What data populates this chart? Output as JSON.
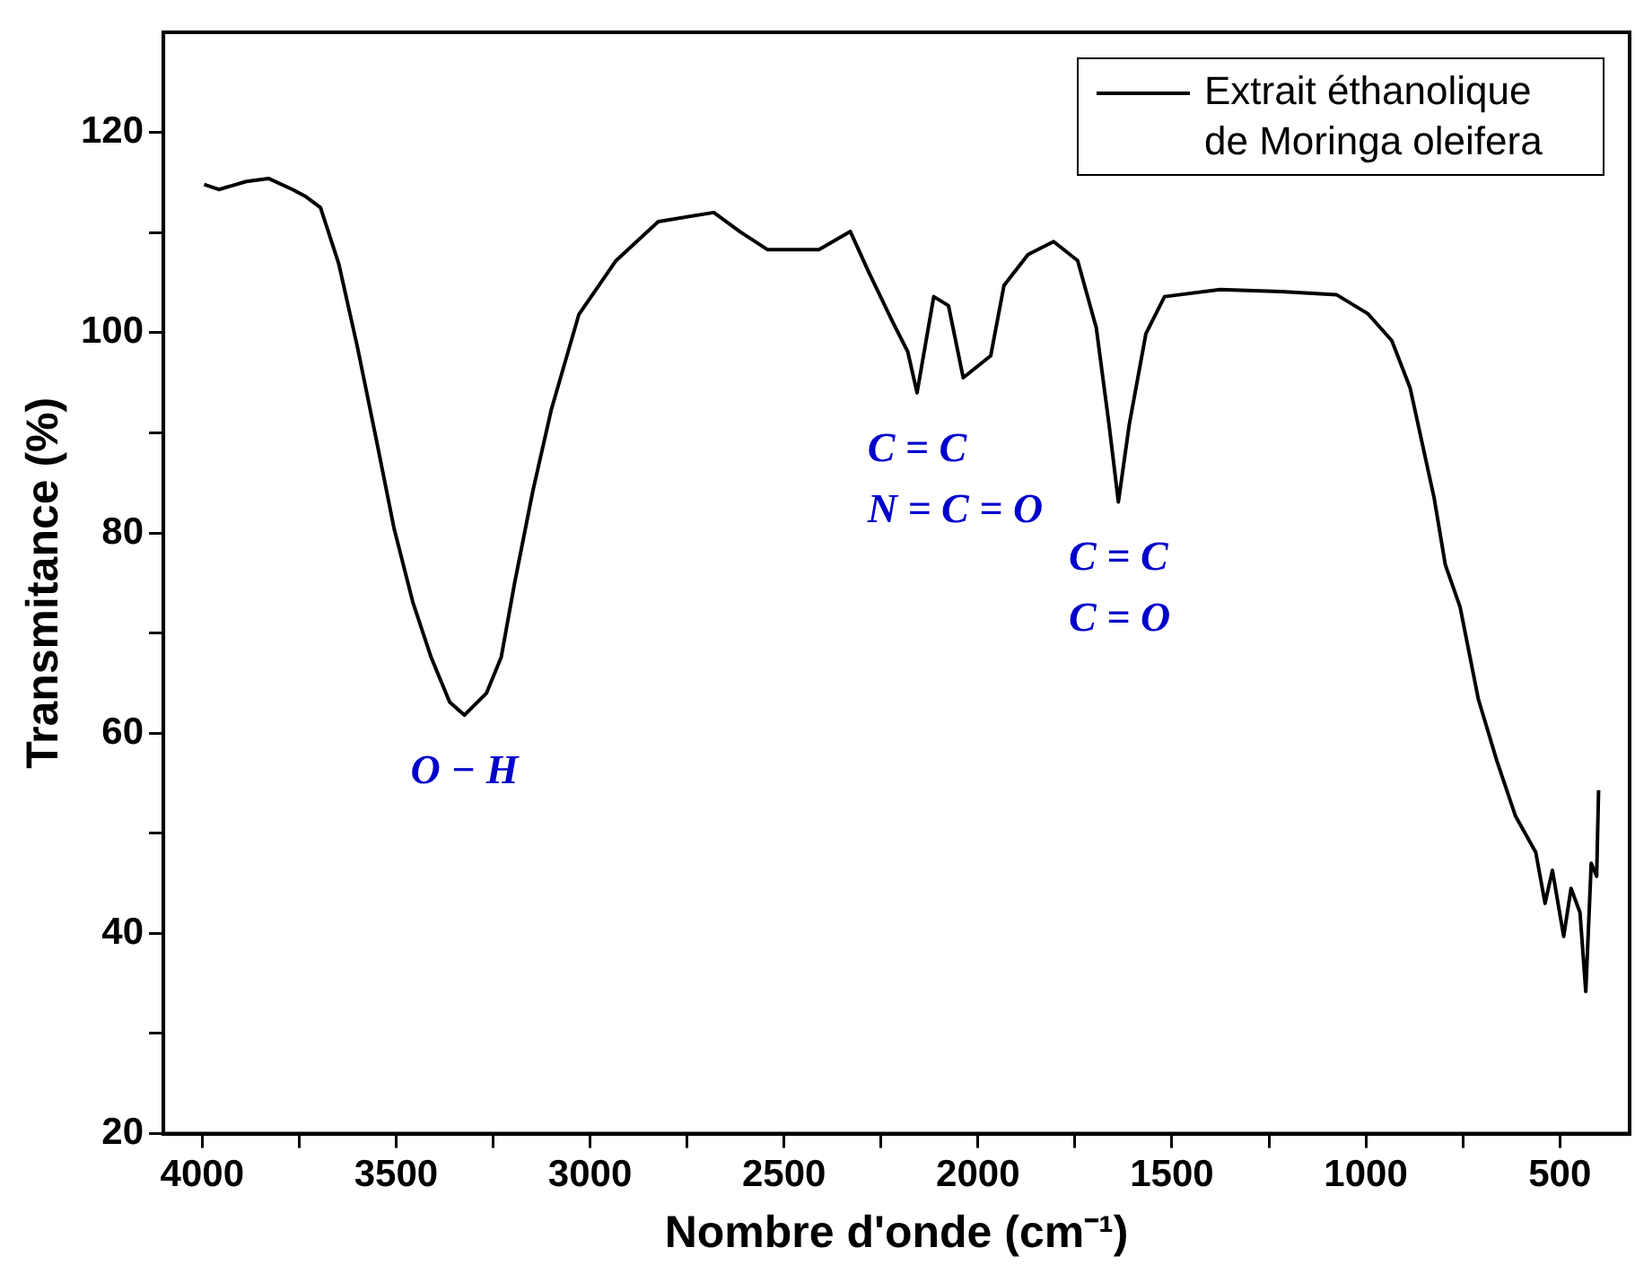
{
  "chart_data": {
    "type": "line",
    "xlabel": "Nombre d'onde (cm⁻¹)",
    "ylabel": "Transmitance (%)",
    "xlim": [
      4100,
      320
    ],
    "ylim": [
      20,
      130
    ],
    "xticks": [
      4000,
      {
        "value": 3750,
        "label": null
      },
      3500,
      {
        "value": 3250,
        "label": null
      },
      3000,
      {
        "value": 2750,
        "label": null
      },
      2500,
      {
        "value": 2250,
        "label": null
      },
      2000,
      {
        "value": 1750,
        "label": null
      },
      1500,
      {
        "value": 1250,
        "label": null
      },
      1000,
      {
        "value": 750,
        "label": null
      },
      500
    ],
    "yticks": [
      20,
      {
        "value": 30,
        "label": null
      },
      40,
      {
        "value": 50,
        "label": null
      },
      60,
      {
        "value": 70,
        "label": null
      },
      80,
      {
        "value": 90,
        "label": null
      },
      100,
      {
        "value": 110,
        "label": null
      },
      120
    ],
    "grid": false,
    "legend": "top right",
    "annotations": [
      {
        "text": "O − H",
        "x": 3324,
        "y": 61.8
      },
      {
        "text": "C = C\nN = C = O",
        "x": 2157,
        "y": 94
      },
      {
        "text": "C = C\nC = O",
        "x": 1638,
        "y": 83.1
      }
    ],
    "series": [
      {
        "name": "Extrait éthanolique de Moringa oleifera",
        "color": "#000000",
        "x": [
          3995,
          3957,
          3886,
          3829,
          3767,
          3733,
          3695,
          3648,
          3600,
          3552,
          3505,
          3457,
          3410,
          3362,
          3324,
          3267,
          3229,
          3195,
          3148,
          3100,
          3029,
          2933,
          2824,
          2681,
          2614,
          2543,
          2410,
          2329,
          2281,
          2219,
          2181,
          2157,
          2114,
          2076,
          2038,
          1967,
          1933,
          1871,
          1805,
          1743,
          1695,
          1662,
          1638,
          1610,
          1567,
          1519,
          1376,
          1219,
          1076,
          995,
          933,
          886,
          824,
          795,
          757,
          710,
          662,
          614,
          562,
          538,
          519,
          490,
          471,
          448,
          433,
          419,
          405,
          400
        ],
        "values": [
          114.8,
          114.3,
          115.1,
          115.4,
          114.3,
          113.6,
          112.5,
          106.9,
          98.6,
          89.5,
          80.4,
          73.1,
          67.6,
          63.1,
          61.8,
          64,
          67.6,
          74.9,
          84.1,
          92.3,
          101.8,
          107.2,
          111.1,
          112,
          110.1,
          108.3,
          108.3,
          110.1,
          106,
          101,
          98.1,
          94,
          103.6,
          102.7,
          95.5,
          97.7,
          104.7,
          107.8,
          109.1,
          107.2,
          100.5,
          90.8,
          83.1,
          90.8,
          99.9,
          103.6,
          104.3,
          104.1,
          103.8,
          101.9,
          99.2,
          94.5,
          83.5,
          76.8,
          72.6,
          63.4,
          57.2,
          51.7,
          48.1,
          43,
          46.3,
          39.7,
          44.5,
          42.1,
          34.2,
          47,
          45.7,
          54.3
        ]
      }
    ]
  }
}
